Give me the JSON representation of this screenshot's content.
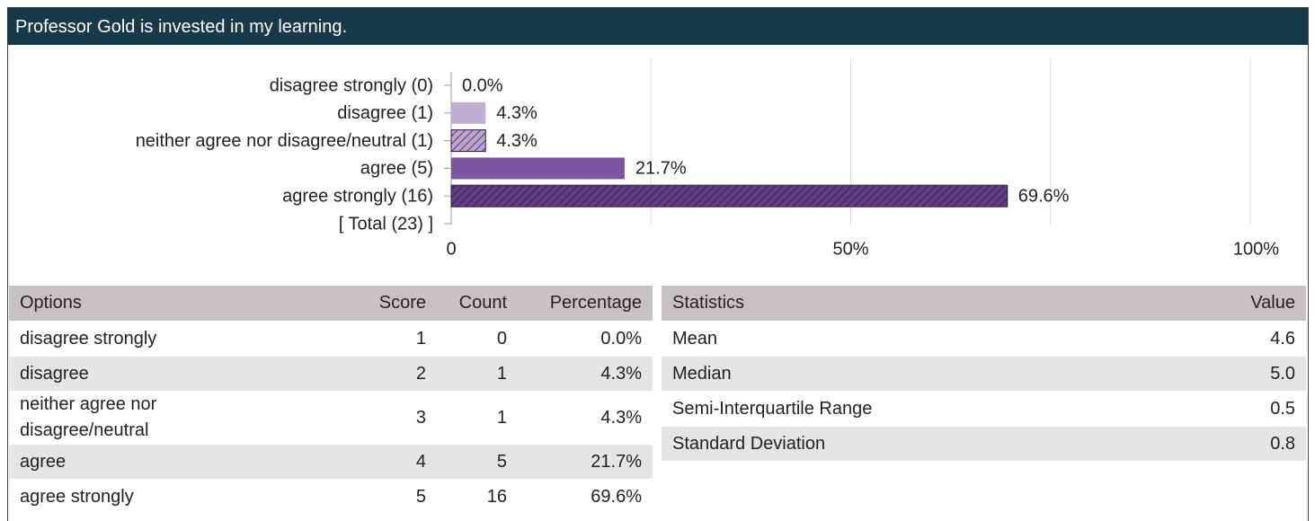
{
  "header": {
    "title": "Professor Gold is invested in my learning."
  },
  "chart_data": {
    "type": "bar",
    "orientation": "horizontal",
    "categories": [
      "disagree strongly (0)",
      "disagree (1)",
      "neither agree nor disagree/neutral (1)",
      "agree (5)",
      "agree strongly (16)",
      "[ Total (23) ]"
    ],
    "values": [
      0,
      4.3,
      4.3,
      21.7,
      69.6,
      null
    ],
    "value_labels": [
      "0.0%",
      "4.3%",
      "4.3%",
      "21.7%",
      "69.6%",
      null
    ],
    "colors": [
      "#c0aed4",
      "#c0aed4",
      "#b9a5cf",
      "#7b57a1",
      "#5e3d84",
      null
    ],
    "hatch": [
      false,
      false,
      true,
      false,
      true,
      false
    ],
    "xlim": [
      0,
      100
    ],
    "xticks": [
      0,
      {
        "value": 50,
        "label": "50%"
      },
      {
        "value": 100,
        "label": "100%"
      }
    ],
    "minor_xticks": [
      25,
      75
    ],
    "grid": true
  },
  "options_table": {
    "columns": [
      "Options",
      "Score",
      "Count",
      "Percentage"
    ],
    "rows": [
      [
        "disagree strongly",
        "1",
        "0",
        "0.0%"
      ],
      [
        "disagree",
        "2",
        "1",
        "4.3%"
      ],
      [
        "neither agree nor disagree/neutral",
        "3",
        "1",
        "4.3%"
      ],
      [
        "agree",
        "4",
        "5",
        "21.7%"
      ],
      [
        "agree strongly",
        "5",
        "16",
        "69.6%"
      ]
    ]
  },
  "statistics_table": {
    "columns": [
      "Statistics",
      "Value"
    ],
    "rows": [
      [
        "Mean",
        "4.6"
      ],
      [
        "Median",
        "5.0"
      ],
      [
        "Semi-Interquartile Range",
        "0.5"
      ],
      [
        "Standard Deviation",
        "0.8"
      ]
    ]
  }
}
